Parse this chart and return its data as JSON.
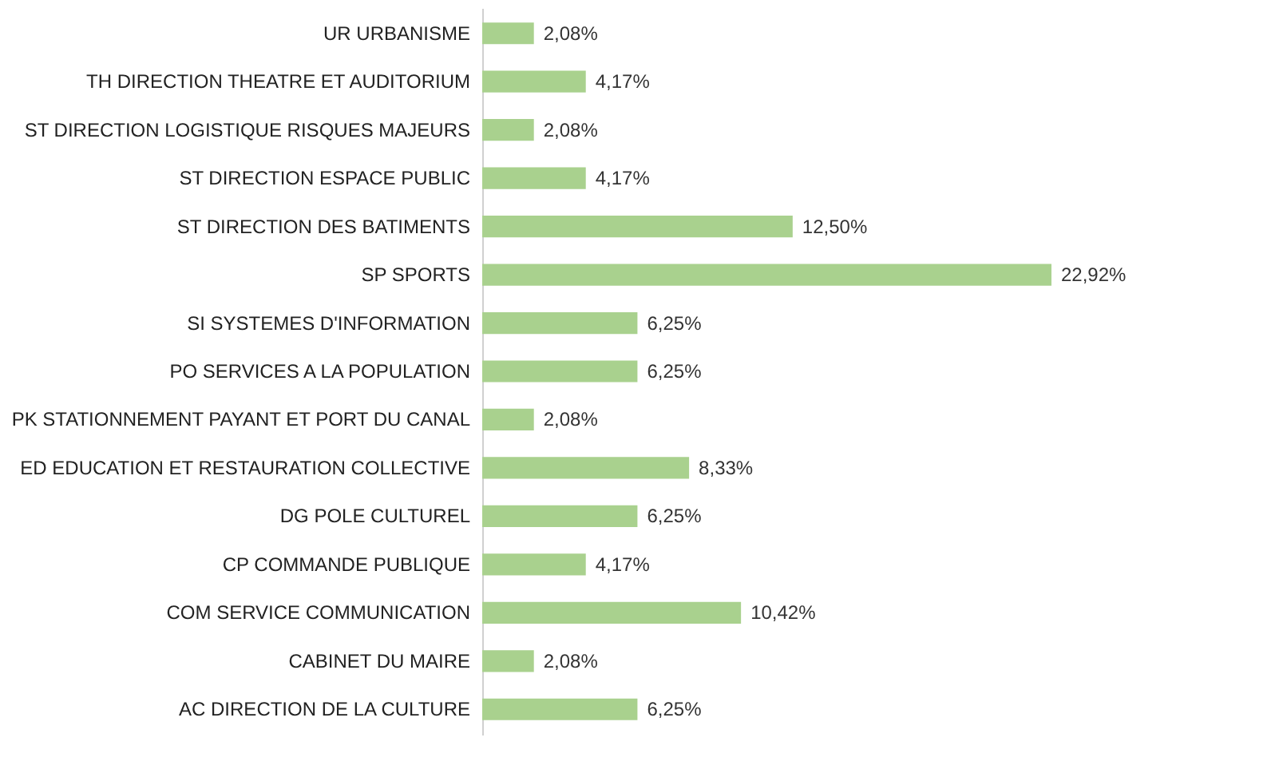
{
  "chart_data": {
    "type": "bar",
    "orientation": "horizontal",
    "categories": [
      "UR URBANISME",
      "TH DIRECTION THEATRE ET AUDITORIUM",
      "ST DIRECTION LOGISTIQUE RISQUES MAJEURS",
      "ST DIRECTION ESPACE PUBLIC",
      "ST DIRECTION DES BATIMENTS",
      "SP SPORTS",
      "SI SYSTEMES D'INFORMATION",
      "PO SERVICES A LA POPULATION",
      "PK STATIONNEMENT PAYANT ET PORT DU CANAL",
      "ED EDUCATION ET RESTAURATION COLLECTIVE",
      "DG POLE CULTUREL",
      "CP COMMANDE PUBLIQUE",
      "COM SERVICE COMMUNICATION",
      "CABINET DU MAIRE",
      "AC DIRECTION DE LA CULTURE"
    ],
    "values": [
      2.08,
      4.17,
      2.08,
      4.17,
      12.5,
      22.92,
      6.25,
      6.25,
      2.08,
      8.33,
      6.25,
      4.17,
      10.42,
      2.08,
      6.25
    ],
    "value_labels": [
      "2,08%",
      "4,17%",
      "2,08%",
      "4,17%",
      "12,50%",
      "22,92%",
      "6,25%",
      "6,25%",
      "2,08%",
      "8,33%",
      "6,25%",
      "4,17%",
      "10,42%",
      "2,08%",
      "6,25%"
    ],
    "color": "#a9d18e",
    "tick_labels": "y"
  }
}
